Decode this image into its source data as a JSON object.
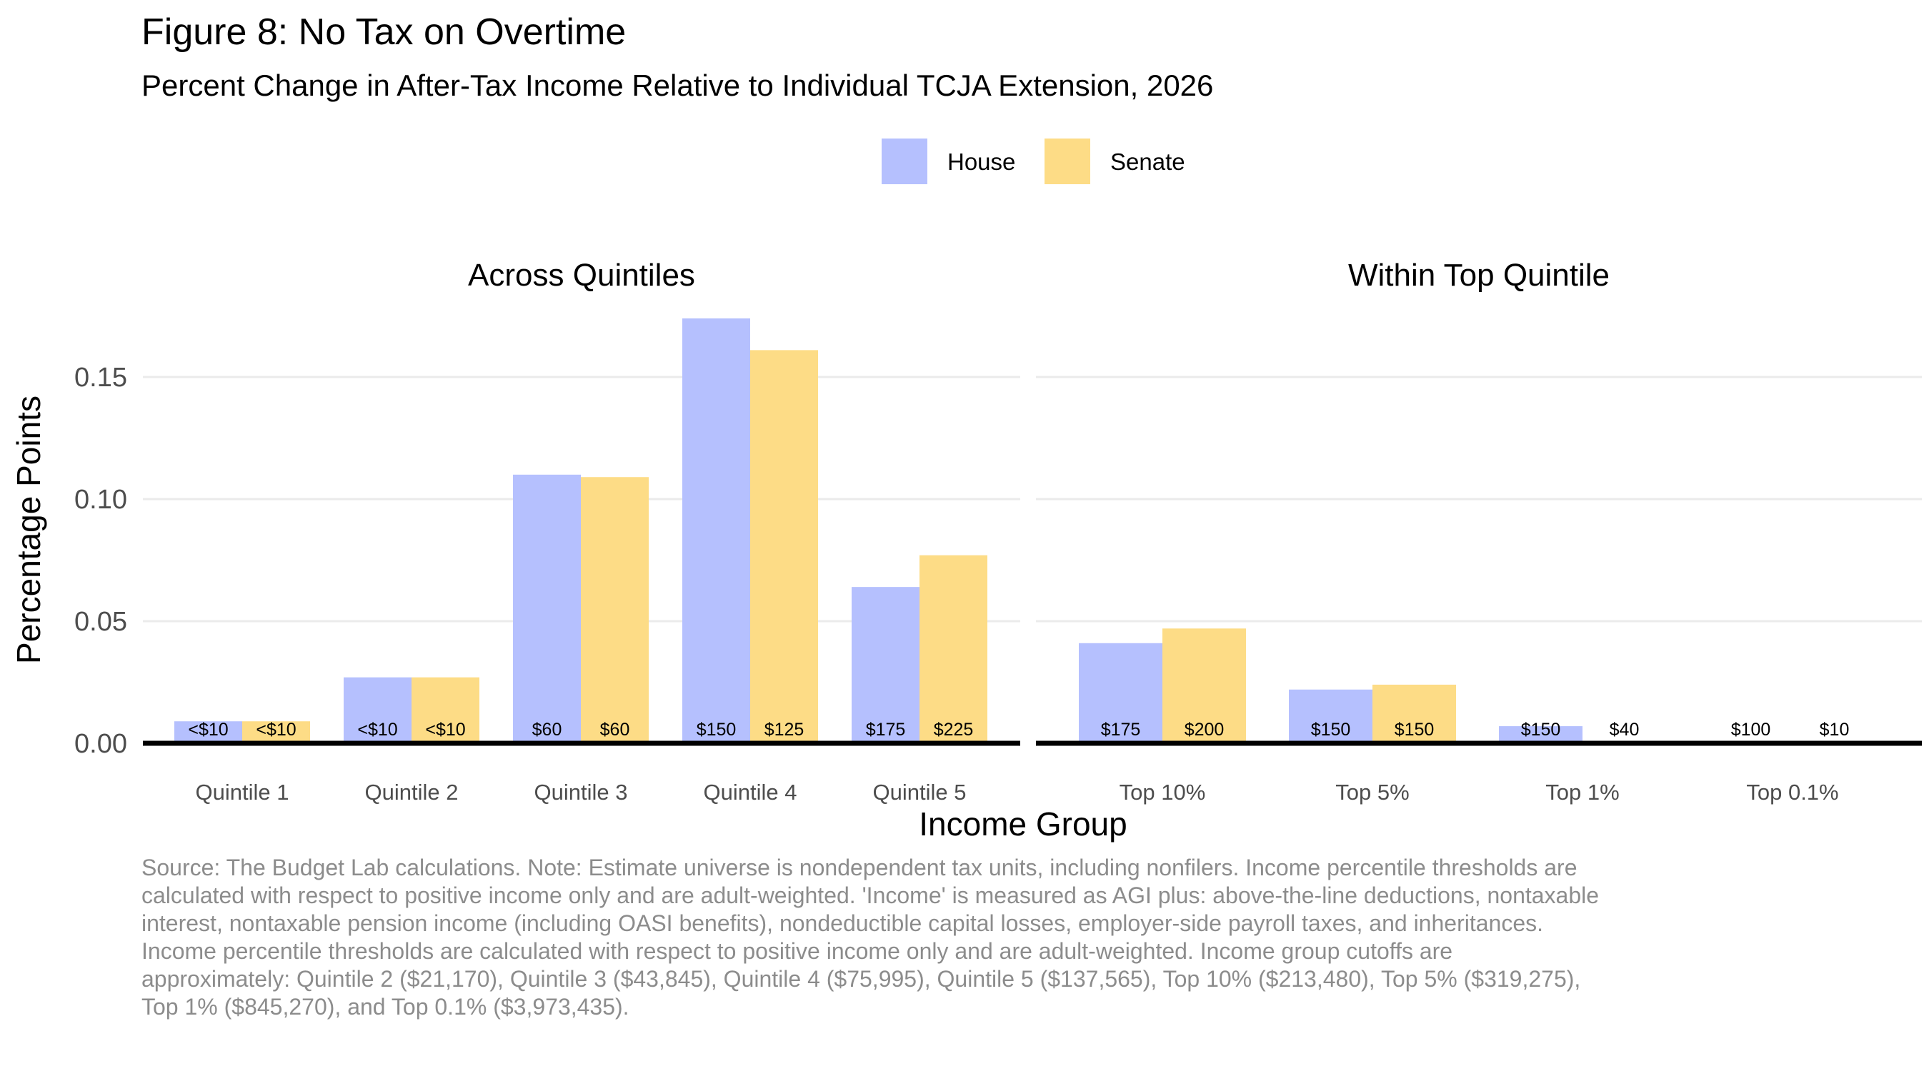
{
  "chart_data": {
    "type": "bar",
    "title": "Figure 8: No Tax on Overtime",
    "subtitle": "Percent Change in After-Tax Income Relative to Individual TCJA Extension, 2026",
    "xlabel": "Income Group",
    "ylabel": "Percentage Points",
    "ylim": [
      0,
      0.175
    ],
    "yticks": [
      "0.00",
      "0.05",
      "0.10",
      "0.15"
    ],
    "ytick_values": [
      0,
      0.05,
      0.1,
      0.15
    ],
    "legend": {
      "position": "top",
      "entries": [
        {
          "name": "House",
          "color": "#b5c0fe"
        },
        {
          "name": "Senate",
          "color": "#fddc86"
        }
      ]
    },
    "colors": {
      "house": "#b5c0fe",
      "senate": "#fddc86",
      "baseline": "#000000",
      "grid": "#ebebeb"
    },
    "panels": [
      {
        "title": "Across Quintiles",
        "categories": [
          "Quintile 1",
          "Quintile 2",
          "Quintile 3",
          "Quintile 4",
          "Quintile 5"
        ],
        "series": [
          {
            "name": "House",
            "values": [
              0.009,
              0.027,
              0.11,
              0.174,
              0.064
            ],
            "labels": [
              "<$10",
              "<$10",
              "$60",
              "$150",
              "$175"
            ]
          },
          {
            "name": "Senate",
            "values": [
              0.009,
              0.027,
              0.109,
              0.161,
              0.077
            ],
            "labels": [
              "<$10",
              "<$10",
              "$60",
              "$125",
              "$225"
            ]
          }
        ]
      },
      {
        "title": "Within Top Quintile",
        "categories": [
          "Top 10%",
          "Top 5%",
          "Top 1%",
          "Top 0.1%"
        ],
        "series": [
          {
            "name": "House",
            "values": [
              0.041,
              0.022,
              0.007,
              0.0005
            ],
            "labels": [
              "$175",
              "$150",
              "$150",
              "$100"
            ]
          },
          {
            "name": "Senate",
            "values": [
              0.047,
              0.024,
              0.0008,
              0.0001
            ],
            "labels": [
              "$200",
              "$150",
              "$40",
              "$10"
            ]
          }
        ]
      }
    ]
  },
  "note": "Source: The Budget Lab calculations. Note: Estimate universe is nondependent tax units, including nonfilers. Income percentile thresholds are calculated with respect to positive income only and are adult-weighted. 'Income' is measured as AGI plus: above-the-line deductions, nontaxable interest, nontaxable pension income (including OASI benefits), nondeductible capital losses, employer-side payroll taxes, and inheritances. Income percentile thresholds are calculated with respect to positive income only and are adult-weighted. Income group cutoffs are approximately: Quintile 2 ($21,170), Quintile 3 ($43,845), Quintile 4 ($75,995), Quintile 5 ($137,565), Top 10% ($213,480), Top 5% ($319,275), Top 1% ($845,270), and Top 0.1% ($3,973,435)."
}
